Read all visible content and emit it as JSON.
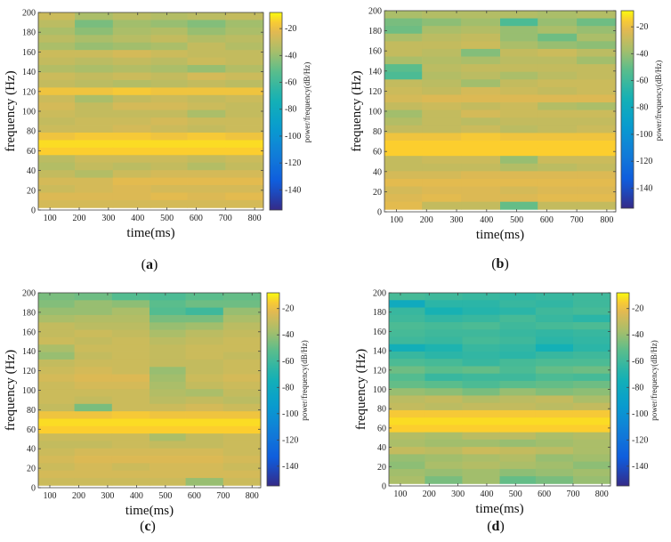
{
  "chart_data": [
    {
      "type": "heatmap",
      "panel_label": "a",
      "xlabel": "time(ms)",
      "ylabel": "frequency (Hz)",
      "colorbar_label": "power/frequency(dB/Hz)",
      "x_ticks": [
        100,
        200,
        300,
        400,
        500,
        600,
        700,
        800
      ],
      "y_ticks": [
        0,
        20,
        40,
        60,
        80,
        100,
        120,
        140,
        160,
        180,
        200
      ],
      "colorbar_ticks": [
        -20,
        -40,
        -60,
        -80,
        -100,
        -120,
        -140
      ],
      "xlim": [
        60,
        830
      ],
      "ylim": [
        0,
        200
      ],
      "clim": [
        -155,
        -8
      ],
      "time_bins": [
        60,
        185,
        315,
        445,
        570,
        700,
        830
      ],
      "freq_bin_width": 7.6,
      "values_desc": [
        [
          -28,
          -36,
          -32,
          -34,
          -32,
          -30
        ],
        [
          -32,
          -46,
          -38,
          -40,
          -44,
          -38
        ],
        [
          -36,
          -42,
          -36,
          -34,
          -40,
          -36
        ],
        [
          -32,
          -36,
          -33,
          -30,
          -34,
          -32
        ],
        [
          -36,
          -40,
          -38,
          -36,
          -30,
          -34
        ],
        [
          -28,
          -28,
          -26,
          -28,
          -30,
          -30
        ],
        [
          -30,
          -32,
          -30,
          -32,
          -28,
          -30
        ],
        [
          -34,
          -36,
          -34,
          -36,
          -40,
          -34
        ],
        [
          -28,
          -30,
          -28,
          -30,
          -26,
          -28
        ],
        [
          -30,
          -32,
          -34,
          -32,
          -30,
          -32
        ],
        [
          -18,
          -18,
          -16,
          -18,
          -18,
          -18
        ],
        [
          -28,
          -36,
          -30,
          -28,
          -30,
          -28
        ],
        [
          -26,
          -30,
          -26,
          -26,
          -28,
          -30
        ],
        [
          -28,
          -30,
          -30,
          -30,
          -36,
          -30
        ],
        [
          -30,
          -28,
          -28,
          -26,
          -28,
          -28
        ],
        [
          -28,
          -28,
          -26,
          -28,
          -30,
          -28
        ],
        [
          -18,
          -16,
          -16,
          -18,
          -16,
          -18
        ],
        [
          -12,
          -12,
          -12,
          -12,
          -12,
          -12
        ],
        [
          -14,
          -14,
          -14,
          -14,
          -14,
          -14
        ],
        [
          -32,
          -28,
          -28,
          -28,
          -30,
          -28
        ],
        [
          -34,
          -30,
          -32,
          -30,
          -34,
          -30
        ],
        [
          -30,
          -34,
          -28,
          -26,
          -26,
          -26
        ],
        [
          -26,
          -26,
          -22,
          -22,
          -22,
          -22
        ],
        [
          -28,
          -26,
          -24,
          -26,
          -26,
          -26
        ],
        [
          -24,
          -24,
          -24,
          -22,
          -24,
          -22
        ],
        [
          -26,
          -26,
          -26,
          -26,
          -26,
          -26
        ]
      ]
    },
    {
      "type": "heatmap",
      "panel_label": "b",
      "xlabel": "time(ms)",
      "ylabel": "frequency (Hz)",
      "colorbar_label": "power/frequency(dB/Hz)",
      "x_ticks": [
        100,
        200,
        300,
        400,
        500,
        600,
        700,
        800
      ],
      "y_ticks": [
        0,
        20,
        40,
        60,
        80,
        100,
        120,
        140,
        160,
        180,
        200
      ],
      "colorbar_ticks": [
        -20,
        -40,
        -60,
        -80,
        -100,
        -120,
        -140
      ],
      "xlim": [
        60,
        830
      ],
      "ylim": [
        0,
        200
      ],
      "clim": [
        -155,
        -8
      ],
      "time_bins": [
        60,
        185,
        315,
        445,
        570,
        700,
        830
      ],
      "freq_bin_width": 7.6,
      "values_desc": [
        [
          -36,
          -34,
          -34,
          -34,
          -36,
          -34
        ],
        [
          -46,
          -42,
          -38,
          -56,
          -40,
          -48
        ],
        [
          -48,
          -36,
          -34,
          -40,
          -36,
          -40
        ],
        [
          -36,
          -32,
          -30,
          -40,
          -48,
          -36
        ],
        [
          -30,
          -30,
          -28,
          -36,
          -40,
          -42
        ],
        [
          -30,
          -32,
          -44,
          -30,
          -28,
          -32
        ],
        [
          -36,
          -34,
          -36,
          -32,
          -32,
          -38
        ],
        [
          -52,
          -32,
          -30,
          -30,
          -30,
          -30
        ],
        [
          -56,
          -34,
          -32,
          -36,
          -32,
          -30
        ],
        [
          -30,
          -32,
          -38,
          -30,
          -28,
          -28
        ],
        [
          -28,
          -30,
          -26,
          -28,
          -30,
          -28
        ],
        [
          -26,
          -24,
          -24,
          -24,
          -24,
          -24
        ],
        [
          -30,
          -28,
          -30,
          -28,
          -34,
          -36
        ],
        [
          -38,
          -30,
          -26,
          -28,
          -28,
          -28
        ],
        [
          -34,
          -30,
          -32,
          -30,
          -30,
          -30
        ],
        [
          -30,
          -30,
          -28,
          -32,
          -30,
          -28
        ],
        [
          -18,
          -18,
          -16,
          -18,
          -18,
          -18
        ],
        [
          -14,
          -14,
          -14,
          -14,
          -14,
          -14
        ],
        [
          -14,
          -14,
          -14,
          -14,
          -14,
          -14
        ],
        [
          -30,
          -28,
          -28,
          -40,
          -28,
          -28
        ],
        [
          -30,
          -30,
          -30,
          -34,
          -32,
          -30
        ],
        [
          -26,
          -26,
          -24,
          -24,
          -24,
          -24
        ],
        [
          -22,
          -22,
          -22,
          -22,
          -22,
          -22
        ],
        [
          -26,
          -24,
          -24,
          -26,
          -24,
          -24
        ],
        [
          -24,
          -22,
          -24,
          -24,
          -22,
          -22
        ],
        [
          -22,
          -30,
          -30,
          -50,
          -30,
          -30
        ]
      ]
    },
    {
      "type": "heatmap",
      "panel_label": "c",
      "xlabel": "time(ms)",
      "ylabel": "frequency (Hz)",
      "colorbar_label": "power/frequency(dB/Hz)",
      "x_ticks": [
        100,
        200,
        300,
        400,
        500,
        600,
        700,
        800
      ],
      "y_ticks": [
        0,
        20,
        40,
        60,
        80,
        100,
        120,
        140,
        160,
        180,
        200
      ],
      "colorbar_ticks": [
        -20,
        -40,
        -60,
        -80,
        -100,
        -120,
        -140
      ],
      "xlim": [
        60,
        830
      ],
      "ylim": [
        0,
        200
      ],
      "clim": [
        -155,
        -8
      ],
      "time_bins": [
        60,
        185,
        315,
        445,
        570,
        700,
        830
      ],
      "freq_bin_width": 7.6,
      "values_desc": [
        [
          -46,
          -48,
          -54,
          -56,
          -52,
          -50
        ],
        [
          -44,
          -40,
          -42,
          -52,
          -48,
          -48
        ],
        [
          -40,
          -40,
          -36,
          -54,
          -60,
          -40
        ],
        [
          -36,
          -34,
          -34,
          -46,
          -46,
          -36
        ],
        [
          -30,
          -32,
          -32,
          -40,
          -38,
          -32
        ],
        [
          -30,
          -28,
          -30,
          -36,
          -32,
          -30
        ],
        [
          -28,
          -30,
          -28,
          -32,
          -30,
          -28
        ],
        [
          -36,
          -28,
          -28,
          -30,
          -28,
          -28
        ],
        [
          -40,
          -30,
          -28,
          -30,
          -28,
          -30
        ],
        [
          -30,
          -28,
          -28,
          -30,
          -30,
          -28
        ],
        [
          -28,
          -26,
          -28,
          -40,
          -30,
          -28
        ],
        [
          -26,
          -24,
          -24,
          -38,
          -28,
          -26
        ],
        [
          -28,
          -26,
          -26,
          -36,
          -30,
          -28
        ],
        [
          -28,
          -28,
          -28,
          -34,
          -36,
          -30
        ],
        [
          -28,
          -30,
          -28,
          -32,
          -30,
          -32
        ],
        [
          -30,
          -46,
          -28,
          -28,
          -26,
          -28
        ],
        [
          -18,
          -18,
          -16,
          -18,
          -18,
          -18
        ],
        [
          -12,
          -12,
          -12,
          -12,
          -12,
          -12
        ],
        [
          -14,
          -14,
          -14,
          -14,
          -14,
          -14
        ],
        [
          -28,
          -28,
          -28,
          -36,
          -30,
          -28
        ],
        [
          -30,
          -30,
          -28,
          -30,
          -30,
          -28
        ],
        [
          -28,
          -26,
          -26,
          -26,
          -26,
          -28
        ],
        [
          -26,
          -24,
          -24,
          -24,
          -24,
          -26
        ],
        [
          -28,
          -26,
          -28,
          -26,
          -26,
          -28
        ],
        [
          -26,
          -26,
          -26,
          -26,
          -26,
          -26
        ],
        [
          -28,
          -28,
          -28,
          -28,
          -40,
          -28
        ]
      ]
    },
    {
      "type": "heatmap",
      "panel_label": "d",
      "xlabel": "time(ms)",
      "ylabel": "frequency (Hz)",
      "colorbar_label": "power/frequency(dB/Hz)",
      "x_ticks": [
        100,
        200,
        300,
        400,
        500,
        600,
        700,
        800
      ],
      "y_ticks": [
        0,
        20,
        40,
        60,
        80,
        100,
        120,
        140,
        160,
        180,
        200
      ],
      "colorbar_ticks": [
        -20,
        -40,
        -60,
        -80,
        -100,
        -120,
        -140
      ],
      "xlim": [
        60,
        830
      ],
      "ylim": [
        0,
        200
      ],
      "clim": [
        -155,
        -8
      ],
      "time_bins": [
        60,
        185,
        315,
        445,
        570,
        700,
        830
      ],
      "freq_bin_width": 7.6,
      "values_desc": [
        [
          -58,
          -60,
          -62,
          -64,
          -62,
          -60
        ],
        [
          -80,
          -66,
          -66,
          -62,
          -64,
          -60
        ],
        [
          -62,
          -72,
          -68,
          -66,
          -60,
          -58
        ],
        [
          -60,
          -64,
          -62,
          -58,
          -62,
          -66
        ],
        [
          -56,
          -58,
          -56,
          -60,
          -58,
          -56
        ],
        [
          -58,
          -60,
          -60,
          -62,
          -64,
          -62
        ],
        [
          -60,
          -62,
          -58,
          -60,
          -66,
          -64
        ],
        [
          -76,
          -70,
          -62,
          -64,
          -74,
          -66
        ],
        [
          -62,
          -66,
          -64,
          -66,
          -62,
          -60
        ],
        [
          -56,
          -58,
          -62,
          -58,
          -56,
          -56
        ],
        [
          -48,
          -52,
          -50,
          -56,
          -50,
          -48
        ],
        [
          -54,
          -62,
          -60,
          -60,
          -56,
          -58
        ],
        [
          -50,
          -52,
          -56,
          -52,
          -50,
          -48
        ],
        [
          -40,
          -42,
          -46,
          -40,
          -44,
          -42
        ],
        [
          -32,
          -30,
          -34,
          -32,
          -30,
          -36
        ],
        [
          -30,
          -32,
          -30,
          -30,
          -32,
          -30
        ],
        [
          -16,
          -16,
          -16,
          -16,
          -16,
          -16
        ],
        [
          -12,
          -12,
          -12,
          -12,
          -12,
          -12
        ],
        [
          -14,
          -14,
          -14,
          -14,
          -14,
          -14
        ],
        [
          -34,
          -36,
          -32,
          -32,
          -36,
          -34
        ],
        [
          -36,
          -38,
          -38,
          -40,
          -38,
          -36
        ],
        [
          -30,
          -32,
          -28,
          -30,
          -32,
          -36
        ],
        [
          -40,
          -38,
          -36,
          -34,
          -40,
          -38
        ],
        [
          -42,
          -36,
          -34,
          -36,
          -38,
          -42
        ],
        [
          -38,
          -40,
          -38,
          -42,
          -40,
          -38
        ],
        [
          -36,
          -46,
          -38,
          -50,
          -46,
          -40
        ]
      ]
    }
  ]
}
